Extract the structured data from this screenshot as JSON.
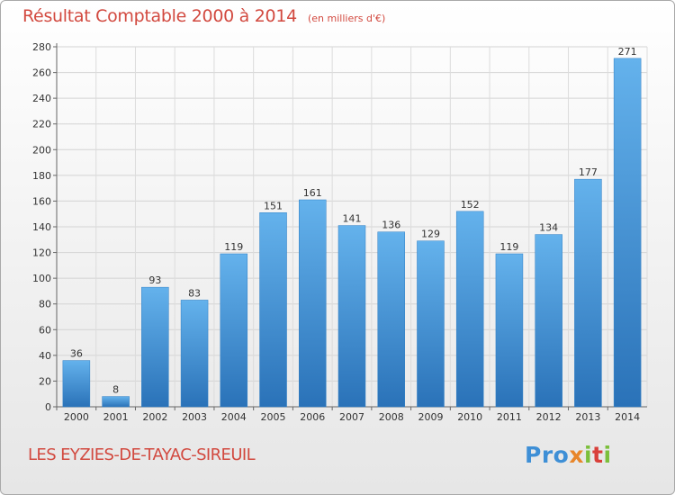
{
  "header": {
    "title": "Résultat Comptable 2000 à 2014",
    "unit": "(en milliers d'€)"
  },
  "footer": {
    "commune": "LES EYZIES-DE-TAYAC-SIREUIL",
    "logo_text": "Proxiti"
  },
  "colors": {
    "title": "#d2493f",
    "bar": "#3d8fd6",
    "bar_light": "#64b2ec",
    "bar_dark": "#2a72b8"
  },
  "chart_data": {
    "type": "bar",
    "title": "Résultat Comptable 2000 à 2014",
    "subtitle": "(en milliers d'€)",
    "xlabel": "",
    "ylabel": "",
    "categories": [
      "2000",
      "2001",
      "2002",
      "2003",
      "2004",
      "2005",
      "2006",
      "2007",
      "2008",
      "2009",
      "2010",
      "2011",
      "2012",
      "2013",
      "2014"
    ],
    "values": [
      36,
      8,
      93,
      83,
      119,
      151,
      161,
      141,
      136,
      129,
      152,
      119,
      134,
      177,
      271
    ],
    "ylim": [
      0,
      280
    ],
    "yticks": [
      0,
      20,
      40,
      60,
      80,
      100,
      120,
      140,
      160,
      180,
      200,
      220,
      240,
      260,
      280
    ],
    "grid": true,
    "legend": "none"
  }
}
